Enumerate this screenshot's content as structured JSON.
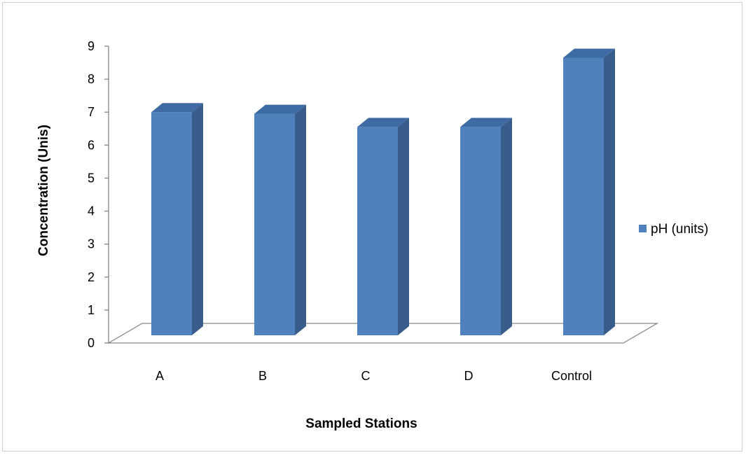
{
  "chart_data": {
    "type": "bar",
    "categories": [
      "A",
      "B",
      "C",
      "D",
      "Control"
    ],
    "series": [
      {
        "name": "pH (units)",
        "values": [
          7.0,
          6.95,
          6.55,
          6.55,
          8.65
        ],
        "color": "#4F81BD"
      }
    ],
    "xlabel": "Sampled Stations",
    "ylabel": "Concentration (Unis)",
    "ylim": [
      0,
      9
    ],
    "yticks": [
      "0",
      "1",
      "2",
      "3",
      "4",
      "5",
      "6",
      "7",
      "8",
      "9"
    ],
    "grid": false,
    "legend": "right",
    "style": "3d-column"
  }
}
